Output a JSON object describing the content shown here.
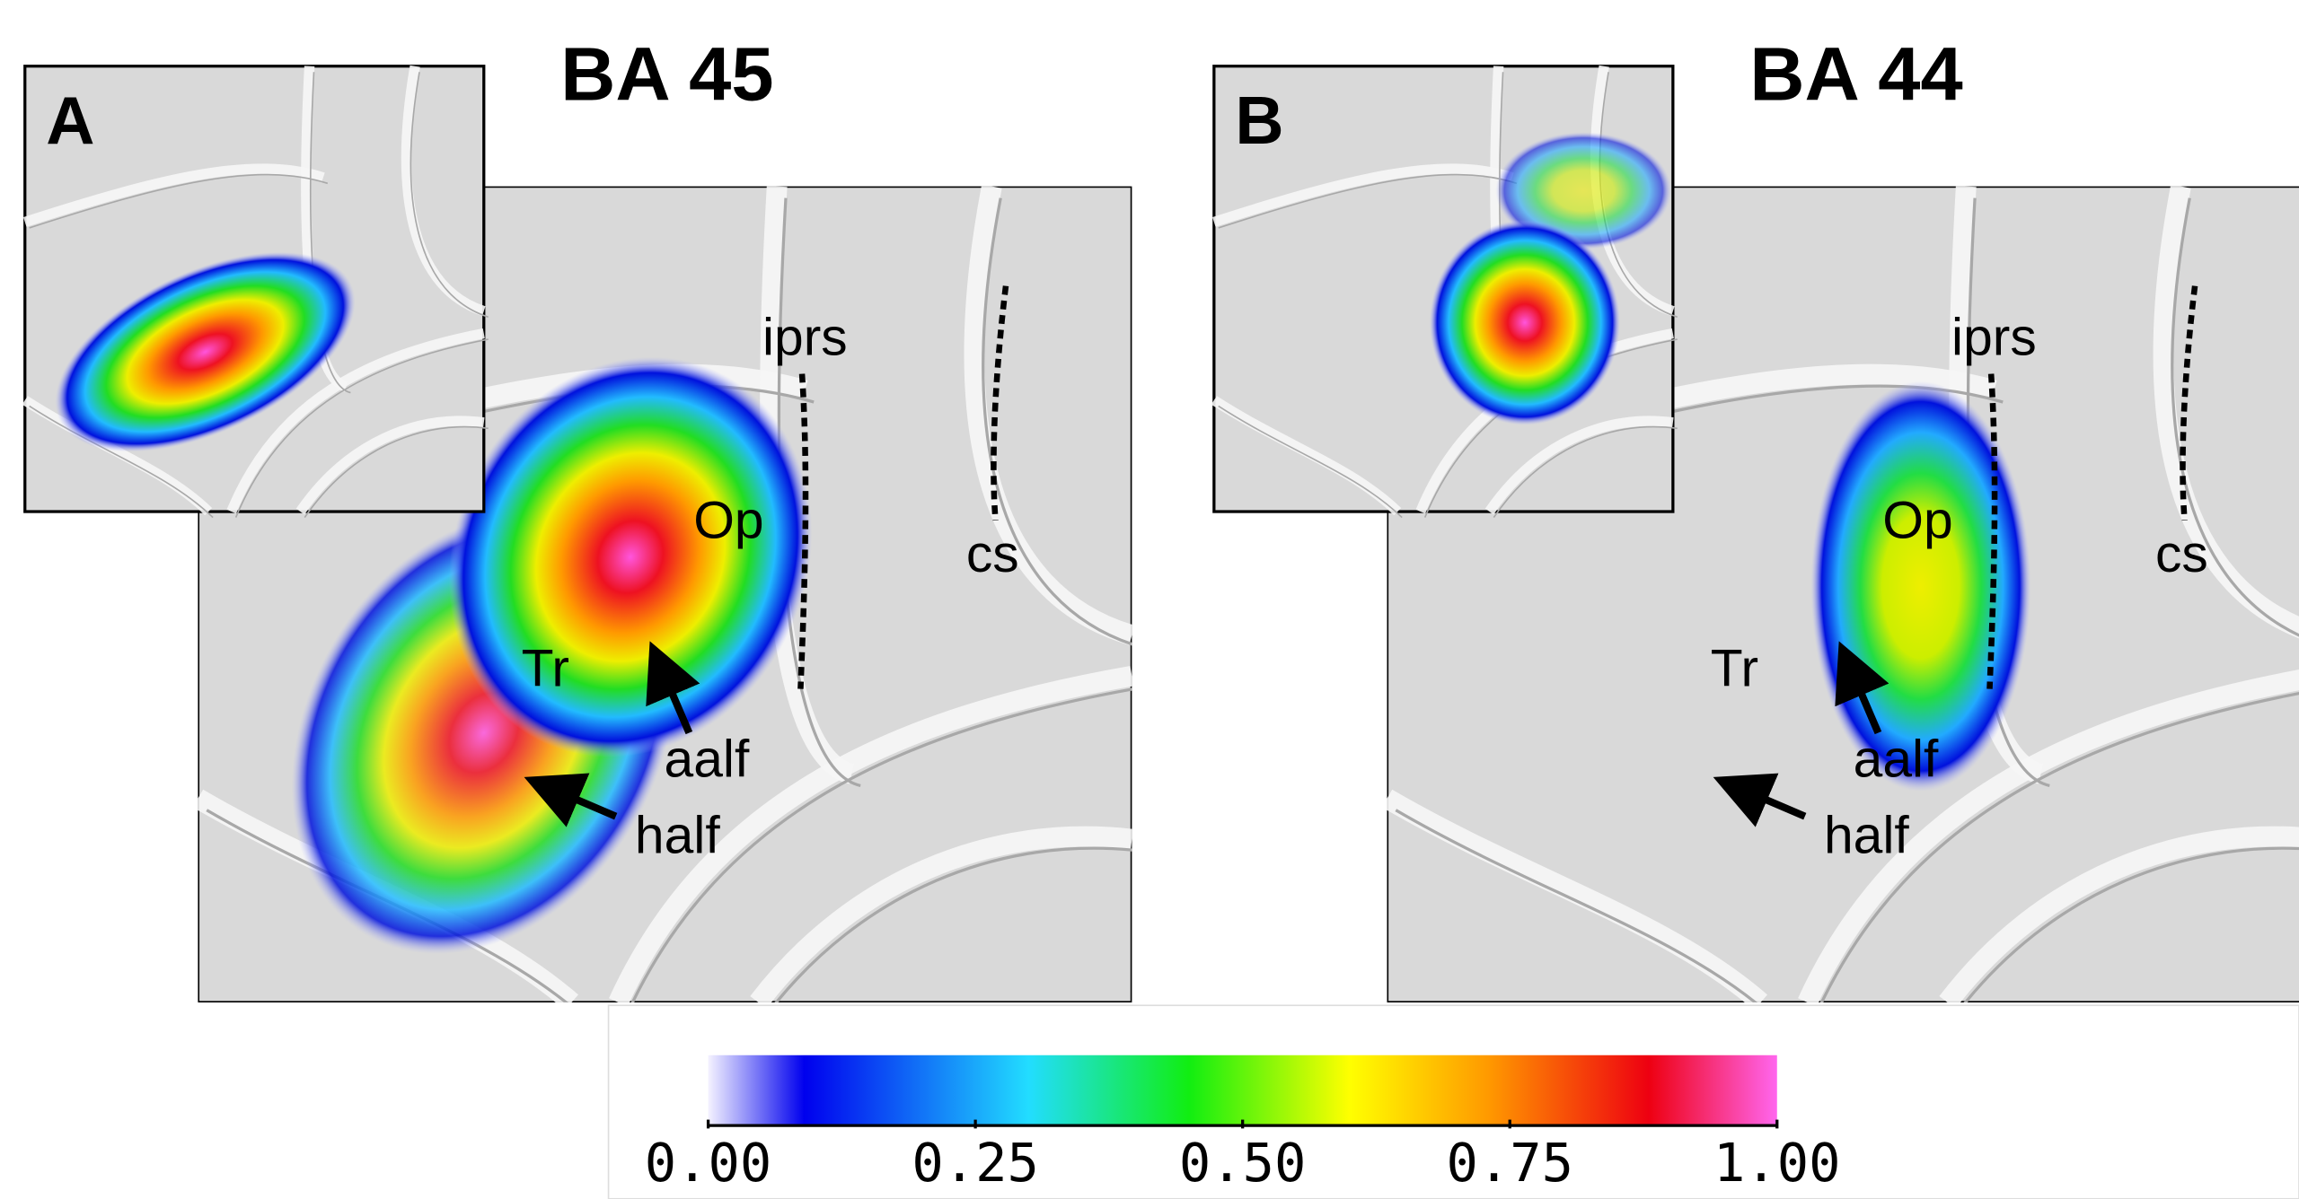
{
  "panels": [
    {
      "letter": "A",
      "title": "BA 45",
      "labels": [
        "iprs",
        "Op",
        "cs",
        "Tr",
        "aalf",
        "half"
      ]
    },
    {
      "letter": "B",
      "title": "BA 44",
      "labels": [
        "iprs",
        "Op",
        "cs",
        "Tr",
        "aalf",
        "half"
      ]
    }
  ],
  "colorbar": {
    "lim": [
      0,
      1
    ],
    "ticks": [
      {
        "value": 0,
        "label": "0.00"
      },
      {
        "value": 0.25,
        "label": "0.25"
      },
      {
        "value": 0.5,
        "label": "0.50"
      },
      {
        "value": 0.75,
        "label": "0.75"
      },
      {
        "value": 1,
        "label": "1.00"
      }
    ]
  }
}
